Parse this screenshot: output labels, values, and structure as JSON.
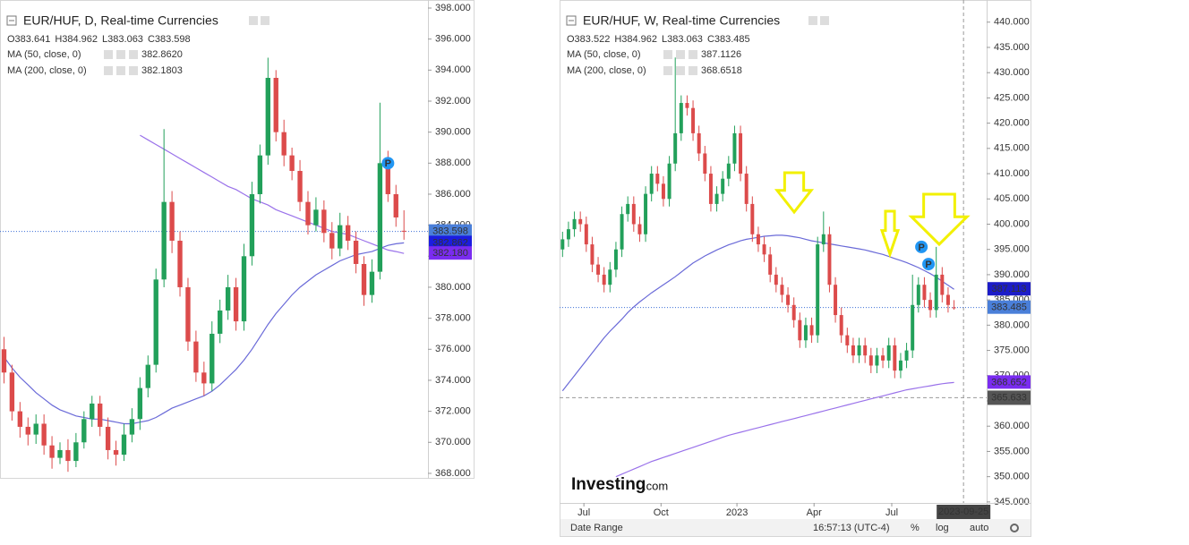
{
  "chart_data": [
    {
      "type": "candlestick",
      "title": "EUR/HUF, D, Real-time Currencies",
      "ohlc_text": [
        "O383.641",
        "H384.962",
        "L383.063",
        "C383.598"
      ],
      "up_color": "#22a05a",
      "down_color": "#dc4b4b",
      "xlim": [
        -0.5,
        53
      ],
      "ylim": [
        367.65,
        398.52
      ],
      "yticks": [
        {
          "value": 368,
          "label": "368.000"
        },
        {
          "value": 370,
          "label": "370.000"
        },
        {
          "value": 372,
          "label": "372.000"
        },
        {
          "value": 374,
          "label": "374.000"
        },
        {
          "value": 376,
          "label": "376.000"
        },
        {
          "value": 378,
          "label": "378.000"
        },
        {
          "value": 380,
          "label": "380.000"
        },
        {
          "value": 382,
          "label": "382.000"
        },
        {
          "value": 384,
          "label": "384.000"
        },
        {
          "value": 386,
          "label": "386.000"
        },
        {
          "value": 388,
          "label": "388.000"
        },
        {
          "value": 390,
          "label": "390.000"
        },
        {
          "value": 392,
          "label": "392.000"
        },
        {
          "value": 394,
          "label": "394.000"
        },
        {
          "value": 396,
          "label": "396.000"
        },
        {
          "value": 398,
          "label": "398.000"
        }
      ],
      "open": [
        376,
        374.5,
        372,
        371,
        370.5,
        371.2,
        369.8,
        369,
        369.5,
        368.8,
        370,
        371.5,
        372.5,
        371,
        369.5,
        369.2,
        370.5,
        371.5,
        373.5,
        375,
        380.5,
        385.5,
        383,
        380,
        376.5,
        374.5,
        373.8,
        377,
        378.5,
        380,
        377.8,
        382,
        386,
        388.5,
        393.5,
        390,
        388.5,
        387.5,
        385.5,
        384,
        385,
        383.5,
        382.5,
        384,
        383,
        381.5,
        379.5,
        381,
        388,
        386,
        383.641
      ],
      "high": [
        376.8,
        375,
        372.6,
        371.6,
        371.8,
        371.8,
        370.4,
        370,
        370.2,
        370.6,
        372,
        373,
        373,
        371.6,
        370.1,
        371.2,
        372.2,
        374.2,
        375.6,
        381.2,
        390.2,
        386.2,
        383.6,
        380.6,
        377.2,
        375.2,
        377.8,
        379.2,
        380.8,
        380.6,
        382.8,
        386.8,
        389.2,
        394.8,
        394,
        390.8,
        389,
        388.2,
        386.2,
        385.8,
        385.6,
        384.2,
        384.8,
        384.6,
        383.6,
        382,
        381.8,
        391.9,
        388.8,
        386.6,
        384.962
      ],
      "low": [
        373.8,
        371.4,
        370.3,
        369.8,
        369.9,
        369.2,
        368.3,
        368.6,
        368.1,
        368.4,
        369.6,
        371,
        370.4,
        368.9,
        368.5,
        368.8,
        370,
        370.8,
        372.9,
        374.5,
        380,
        382.2,
        379.4,
        375.9,
        373.9,
        373,
        373.3,
        376.4,
        377.9,
        377.2,
        377.2,
        381.4,
        385.4,
        387.9,
        389.4,
        387.8,
        386.9,
        384.9,
        383.4,
        383.6,
        382.9,
        381.8,
        382,
        382.4,
        380.9,
        378.8,
        379,
        380.5,
        385.5,
        383.9,
        383.063
      ],
      "close": [
        374.5,
        372,
        371,
        370.5,
        371.2,
        369.8,
        369,
        369.5,
        368.8,
        370,
        371.5,
        372.5,
        371,
        369.5,
        369.2,
        370.5,
        371.5,
        373.5,
        375,
        380.5,
        385.5,
        383,
        380,
        376.5,
        374.5,
        373.8,
        377,
        378.5,
        380,
        377.8,
        382,
        386,
        388.5,
        393.5,
        390,
        388.5,
        387.5,
        385.5,
        384,
        385,
        383.5,
        382.5,
        384,
        383,
        381.5,
        379.5,
        381,
        388,
        386,
        384.5,
        383.598
      ],
      "indicators": [
        {
          "name": "MA (50, close, 0)",
          "color": "#6a6ad8",
          "value_label": "382.8620",
          "values": [
            375.5,
            374.8,
            374.2,
            373.7,
            373.2,
            372.8,
            372.4,
            372.1,
            371.9,
            371.7,
            371.6,
            371.5,
            371.5,
            371.4,
            371.3,
            371.2,
            371.2,
            371.3,
            371.4,
            371.6,
            371.9,
            372.2,
            372.4,
            372.6,
            372.8,
            373.0,
            373.3,
            373.7,
            374.2,
            374.7,
            375.3,
            376.0,
            376.8,
            377.6,
            378.3,
            378.9,
            379.5,
            380.0,
            380.4,
            380.8,
            381.1,
            381.4,
            381.7,
            381.9,
            382.1,
            382.2,
            382.3,
            382.5,
            382.7,
            382.8,
            382.862
          ]
        },
        {
          "name": "MA (200, close, 0)",
          "color": "#9a72ea",
          "value_label": "382.1803",
          "values": [
            null,
            null,
            null,
            null,
            null,
            null,
            null,
            null,
            null,
            null,
            null,
            null,
            null,
            null,
            null,
            null,
            null,
            389.8,
            389.5,
            389.2,
            388.9,
            388.6,
            388.3,
            388.0,
            387.7,
            387.4,
            387.1,
            386.8,
            386.5,
            386.3,
            386.0,
            385.7,
            385.5,
            385.3,
            385.0,
            384.8,
            384.6,
            384.4,
            384.2,
            384.0,
            383.8,
            383.6,
            383.5,
            383.4,
            383.2,
            383.0,
            382.8,
            382.6,
            382.4,
            382.3,
            382.1803
          ]
        }
      ],
      "price_line_color": "#3d6fd6",
      "badges": [
        {
          "value": 383.598,
          "label": "383.598",
          "color": "#4a7fd9"
        },
        {
          "value": 382.862,
          "label": "382.862",
          "color": "#1c1ce0"
        },
        {
          "value": 382.18,
          "label": "382.180",
          "color": "#7a2cf0"
        }
      ],
      "event_markers": [
        {
          "label": "P",
          "x": 48,
          "y": 388
        }
      ]
    },
    {
      "type": "candlestick",
      "title": "EUR/HUF, W, Real-time Currencies",
      "ohlc_text": [
        "O383.522",
        "H384.962",
        "L383.063",
        "C383.485"
      ],
      "up_color": "#22a05a",
      "down_color": "#dc4b4b",
      "xlim": [
        -0.5,
        71.5
      ],
      "ylim": [
        344.8,
        443.5
      ],
      "yticks": [
        {
          "value": 345,
          "label": "345.000"
        },
        {
          "value": 350,
          "label": "350.000"
        },
        {
          "value": 355,
          "label": "355.000"
        },
        {
          "value": 360,
          "label": "360.000"
        },
        {
          "value": 365,
          "label": "365.000"
        },
        {
          "value": 370,
          "label": "370.000"
        },
        {
          "value": 375,
          "label": "375.000"
        },
        {
          "value": 380,
          "label": "380.000"
        },
        {
          "value": 385,
          "label": "385.000"
        },
        {
          "value": 390,
          "label": "390.000"
        },
        {
          "value": 395,
          "label": "395.000"
        },
        {
          "value": 400,
          "label": "400.000"
        },
        {
          "value": 405,
          "label": "405.000"
        },
        {
          "value": 410,
          "label": "410.000"
        },
        {
          "value": 415,
          "label": "415.000"
        },
        {
          "value": 420,
          "label": "420.000"
        },
        {
          "value": 425,
          "label": "425.000"
        },
        {
          "value": 430,
          "label": "430.000"
        },
        {
          "value": 435,
          "label": "435.000"
        },
        {
          "value": 440,
          "label": "440.000"
        }
      ],
      "xticks": [
        {
          "value": 3.6,
          "label": "Jul"
        },
        {
          "value": 16.6,
          "label": "Oct"
        },
        {
          "value": 29.4,
          "label": "2023"
        },
        {
          "value": 42.4,
          "label": "Apr"
        },
        {
          "value": 55.5,
          "label": "Jul"
        }
      ],
      "open": [
        395,
        397,
        399,
        401,
        400,
        396,
        392,
        390,
        388,
        391,
        395,
        402,
        404,
        400,
        398,
        406,
        410,
        408,
        405,
        412,
        418,
        424,
        423,
        418,
        414,
        410,
        404,
        406,
        409,
        412,
        418,
        410,
        404,
        398,
        396,
        394,
        390,
        388,
        386,
        384,
        381,
        377,
        380,
        378,
        396,
        398,
        388,
        382,
        378,
        376,
        374,
        376,
        374,
        372,
        374,
        373,
        376,
        371,
        373,
        375,
        384,
        388,
        385,
        383,
        390,
        386,
        383.522
      ],
      "high": [
        398.5,
        400.5,
        402.5,
        402.5,
        401.5,
        397.5,
        393.5,
        391.5,
        392.5,
        396.5,
        403.5,
        405.5,
        405.5,
        401.5,
        407.5,
        411.5,
        411.5,
        409.5,
        413.5,
        433,
        425.5,
        425.5,
        424.5,
        419.5,
        415.5,
        411.5,
        407.5,
        410.5,
        413.5,
        419.5,
        419.5,
        411.5,
        405.5,
        399.5,
        397.5,
        395.5,
        391.5,
        389.5,
        387.5,
        385.5,
        382.5,
        381.5,
        381.5,
        397.5,
        402.5,
        399.5,
        389.5,
        383.5,
        379.5,
        377.5,
        377.5,
        377.5,
        375.5,
        375.5,
        375.5,
        377.5,
        377.5,
        374.5,
        376.5,
        390,
        389.5,
        389.5,
        386.5,
        395.5,
        391.5,
        387.5,
        384.962
      ],
      "low": [
        393.5,
        395.5,
        397.5,
        398.5,
        394.5,
        390.5,
        388.5,
        386.5,
        386.5,
        389.5,
        393.5,
        400.5,
        398.5,
        396.5,
        396.5,
        404.5,
        406.5,
        403.5,
        403.5,
        410.5,
        416.5,
        421.5,
        416.5,
        412.5,
        408.5,
        402.5,
        402.5,
        404.5,
        407.5,
        410.5,
        408.5,
        402.5,
        396.5,
        394.5,
        392.5,
        388.5,
        386.5,
        384.5,
        382.5,
        379.5,
        375.5,
        375.5,
        376.5,
        376.5,
        394.5,
        386.5,
        380.5,
        376.5,
        374.5,
        372.5,
        372.5,
        372.5,
        370.5,
        370.5,
        371.5,
        371.5,
        369.5,
        369.5,
        371.5,
        373.5,
        382.5,
        383.5,
        381.5,
        381.5,
        384.5,
        382.5,
        383.063
      ],
      "close": [
        397,
        399,
        401,
        400,
        396,
        392,
        390,
        388,
        391,
        395,
        402,
        404,
        400,
        398,
        406,
        410,
        408,
        405,
        412,
        418,
        424,
        423,
        418,
        414,
        410,
        404,
        406,
        409,
        412,
        418,
        410,
        404,
        398,
        396,
        394,
        390,
        388,
        386,
        384,
        381,
        377,
        380,
        378,
        396,
        398,
        388,
        382,
        378,
        376,
        374,
        376,
        374,
        372,
        374,
        373,
        376,
        371,
        373,
        375,
        384,
        388,
        385,
        383,
        390,
        386,
        384,
        383.485
      ],
      "indicators": [
        {
          "name": "MA (50, close, 0)",
          "color": "#6a6ad8",
          "value_label": "387.1126",
          "values": [
            367,
            368.5,
            370,
            371.5,
            373,
            374.5,
            376,
            377.5,
            378.8,
            380,
            381.2,
            382.5,
            383.6,
            384.6,
            385.5,
            386.4,
            387.2,
            388,
            388.8,
            389.6,
            390.5,
            391.4,
            392.3,
            393,
            393.7,
            394.3,
            394.9,
            395.4,
            395.9,
            396.3,
            396.7,
            397,
            397.2,
            397.4,
            397.6,
            397.7,
            397.8,
            397.8,
            397.7,
            397.5,
            397.3,
            397,
            396.7,
            396.5,
            396.3,
            396.1,
            395.9,
            395.7,
            395.5,
            395.3,
            395.1,
            394.9,
            394.6,
            394.3,
            394,
            393.6,
            393.2,
            392.8,
            392.4,
            391.9,
            391.4,
            390.8,
            390.2,
            389.5,
            388.7,
            387.9,
            387.1126
          ]
        },
        {
          "name": "MA (200, close, 0)",
          "color": "#9a72ea",
          "value_label": "368.6518",
          "values": [
            null,
            null,
            null,
            null,
            null,
            null,
            null,
            null,
            null,
            350.0,
            350.5,
            351.0,
            351.5,
            352.0,
            352.5,
            353.0,
            353.4,
            353.8,
            354.2,
            354.6,
            355.0,
            355.4,
            355.8,
            356.2,
            356.6,
            357.0,
            357.4,
            357.8,
            358.2,
            358.5,
            358.8,
            359.1,
            359.4,
            359.7,
            360.0,
            360.3,
            360.6,
            360.9,
            361.2,
            361.5,
            361.8,
            362.1,
            362.4,
            362.7,
            363.0,
            363.3,
            363.6,
            363.9,
            364.2,
            364.5,
            364.8,
            365.1,
            365.4,
            365.7,
            366.0,
            366.3,
            366.6,
            366.9,
            367.2,
            367.4,
            367.6,
            367.8,
            368.0,
            368.2,
            368.4,
            368.55,
            368.6518
          ]
        }
      ],
      "price_line_color": "#3d6fd6",
      "badges": [
        {
          "value": 387.1126,
          "label": "387.113",
          "color": "#1c1cc8"
        },
        {
          "value": 383.485,
          "label": "383.485",
          "color": "#4a7fd9"
        },
        {
          "value": 368.6518,
          "label": "368.652",
          "color": "#7a2cf0"
        }
      ],
      "crosshair": {
        "x": 67.6,
        "x_label": "2023-09-25",
        "y": 365.633,
        "y_label": "365.633"
      },
      "event_markers": [
        {
          "label": "P",
          "x": 60.5,
          "y": 395.5
        },
        {
          "label": "P",
          "x": 61.7,
          "y": 392.1
        }
      ],
      "watermark": [
        "Investing",
        ".com"
      ],
      "toolbar": [
        "Date Range",
        "16:57:13 (UTC-4)",
        "%",
        "log",
        "auto"
      ]
    }
  ]
}
